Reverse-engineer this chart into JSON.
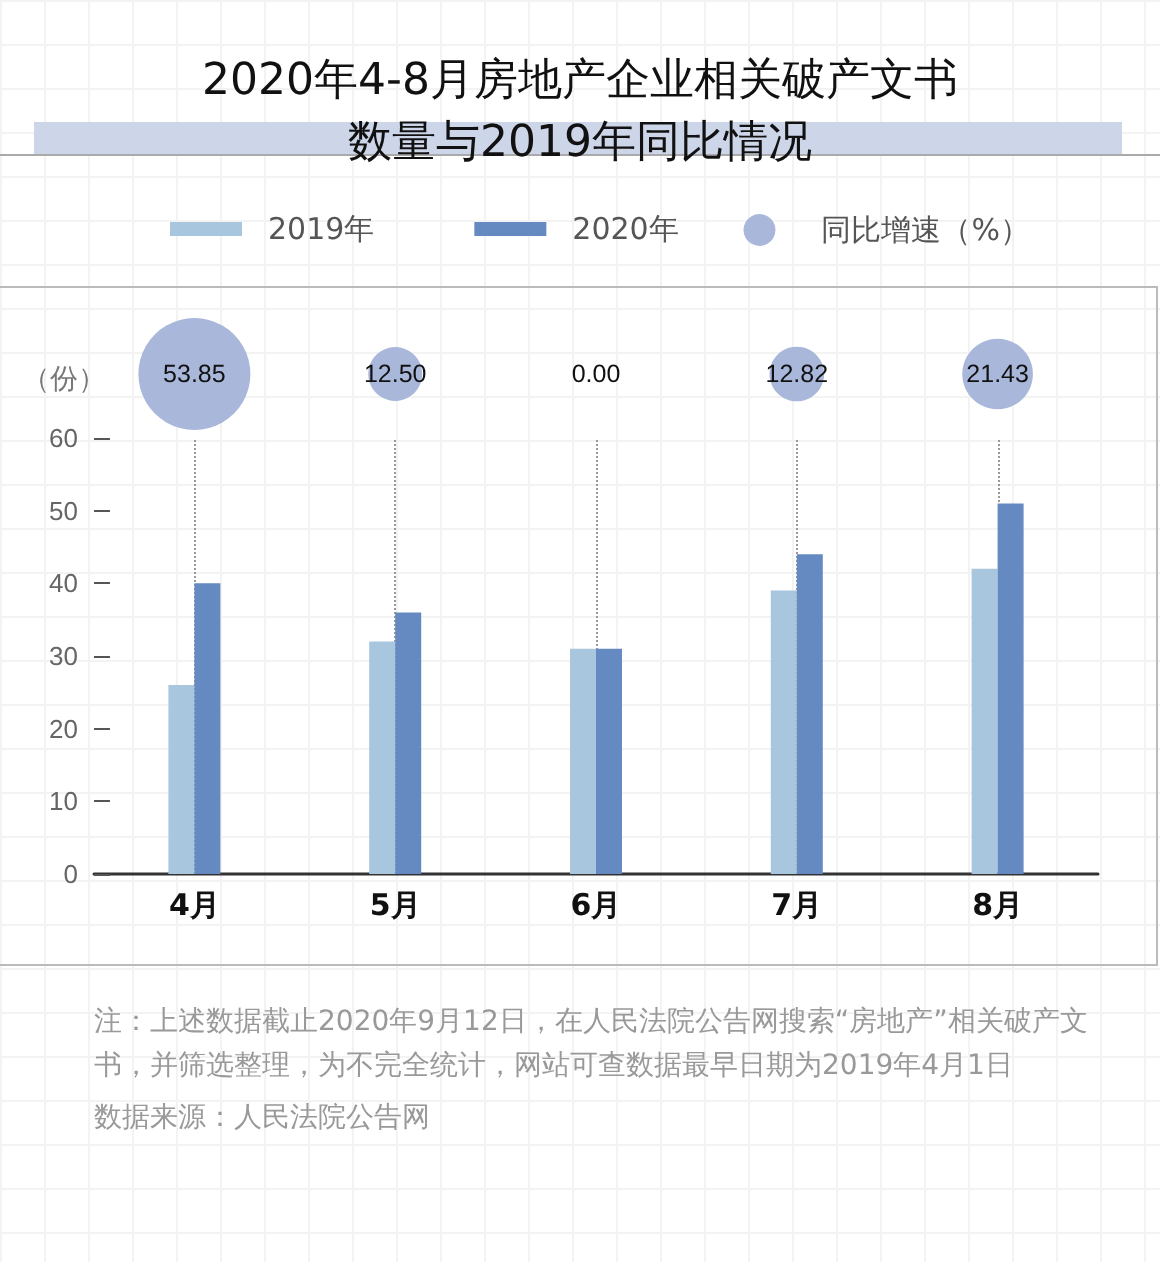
{
  "chart_data": [
    {
      "type": "bar",
      "title": "2020年4-8月房地产企业相关破产文书数量与2019年同比情况",
      "ylabel": "（份）",
      "categories": [
        "4月",
        "5月",
        "6月",
        "7月",
        "8月"
      ],
      "series": [
        {
          "name": "2019年",
          "color": "#a9c6df",
          "values": [
            26,
            32,
            31,
            39,
            42
          ]
        },
        {
          "name": "2020年",
          "color": "#6589c1",
          "values": [
            40,
            36,
            31,
            44,
            51
          ]
        }
      ],
      "ylim": [
        0,
        60
      ],
      "yticks": [
        0,
        10,
        20,
        30,
        40,
        50,
        60
      ],
      "grid": "x",
      "legend": "top left",
      "annotations": [
        "注：上述数据截止2020年9月12日，在人民法院公告网搜索“房地产”相关破产文书，并筛选整理，为不完全统计，网站可查数据最早日期为2019年4月1日",
        "数据来源：人民法院公告网"
      ]
    },
    {
      "type": "other",
      "legend": "top right",
      "series": [
        {
          "name": "同比增速（%）",
          "color": "#a8b7da",
          "values": [
            53.85,
            12.5,
            0,
            12.82,
            21.43
          ],
          "value_labels": [
            "53.85",
            "12.50",
            "0.00",
            "12.82",
            "21.43"
          ]
        }
      ]
    }
  ]
}
